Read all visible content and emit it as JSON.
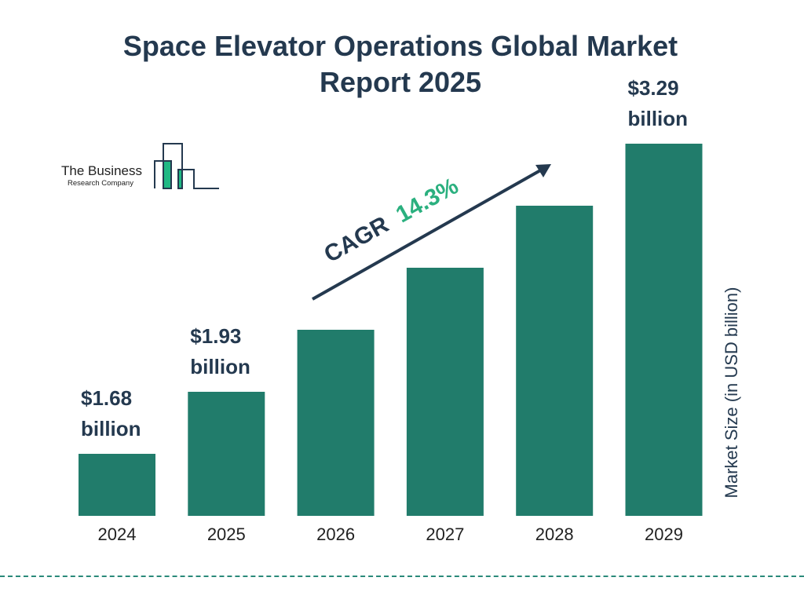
{
  "title": "Space Elevator Operations Global Market Report 2025",
  "logo": {
    "line1": "The Business",
    "line2": "Research Company"
  },
  "colors": {
    "bar": "#217c6b",
    "text": "#24394f",
    "accent": "#2bb07f",
    "logo_green": "#1fb884"
  },
  "chart_data": {
    "type": "bar",
    "categories": [
      "2024",
      "2025",
      "2026",
      "2027",
      "2028",
      "2029"
    ],
    "values": [
      1.68,
      1.93,
      2.21,
      2.52,
      2.88,
      3.29
    ],
    "data_labels": [
      {
        "category": "2024",
        "line1": "$1.68",
        "line2": "billion"
      },
      {
        "category": "2025",
        "line1": "$1.93",
        "line2": "billion"
      },
      {
        "category": "2029",
        "line1": "$3.29",
        "line2": "billion"
      }
    ],
    "ylabel": "Market Size (in USD billion)",
    "annotation": {
      "label": "CAGR",
      "value": "14.3%"
    },
    "grid": false
  }
}
